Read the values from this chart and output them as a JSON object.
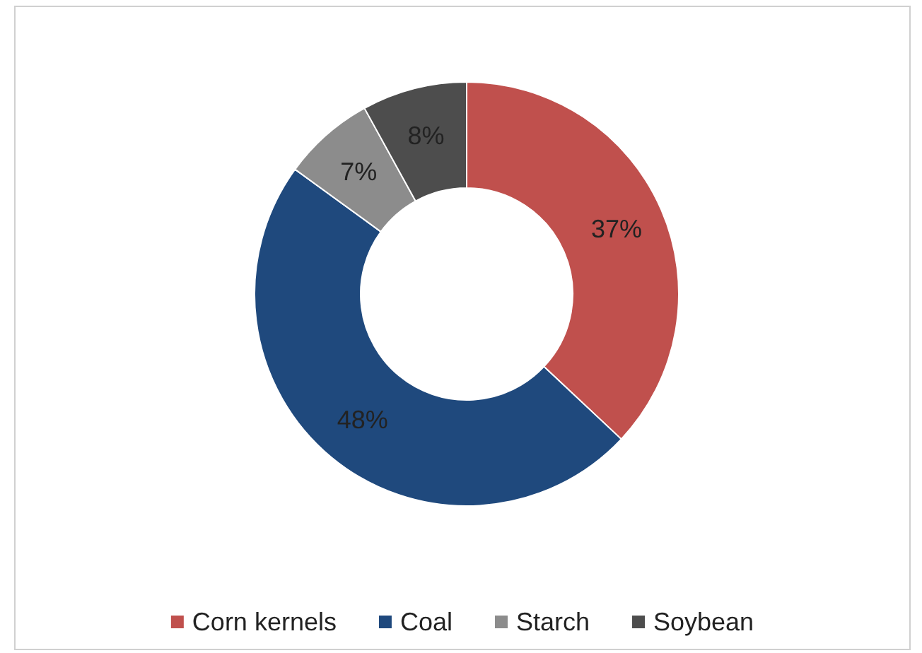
{
  "chart_data": {
    "type": "donut",
    "categories": [
      "Corn kernels",
      "Coal",
      "Starch",
      "Soybean"
    ],
    "values": [
      37,
      48,
      7,
      8
    ],
    "colors": [
      "#c0504d",
      "#1f497d",
      "#8c8c8c",
      "#4d4d4d"
    ],
    "value_labels": [
      "37%",
      "48%",
      "7%",
      "8%"
    ],
    "legend": "bottom"
  }
}
